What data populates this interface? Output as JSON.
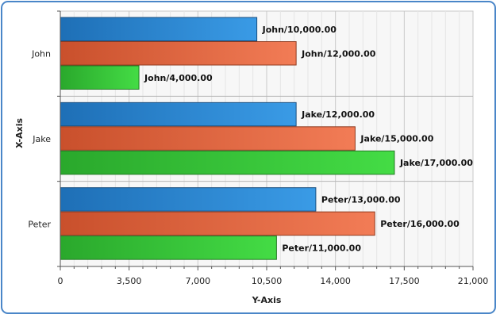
{
  "chart_data": {
    "type": "bar",
    "orientation": "horizontal",
    "categories": [
      "John",
      "Jake",
      "Peter"
    ],
    "series": [
      {
        "values": [
          10000,
          12000,
          13000
        ],
        "color": "#2f86d4"
      },
      {
        "values": [
          12000,
          15000,
          16000
        ],
        "color": "#e8663f"
      },
      {
        "values": [
          4000,
          17000,
          11000
        ],
        "color": "#39c43a"
      }
    ],
    "data_labels": [
      [
        "John/10,000.00",
        "John/12,000.00",
        "John/4,000.00"
      ],
      [
        "Jake/12,000.00",
        "Jake/15,000.00",
        "Jake/17,000.00"
      ],
      [
        "Peter/13,000.00",
        "Peter/16,000.00",
        "Peter/11,000.00"
      ]
    ],
    "xlabel": "Y-Axis",
    "ylabel": "X-Axis",
    "value_ticks": [
      "0",
      "3,500",
      "7,000",
      "10,500",
      "14,000",
      "17,500",
      "21,000"
    ],
    "xlim": [
      0,
      21000
    ],
    "grid": true,
    "legend": "none"
  }
}
